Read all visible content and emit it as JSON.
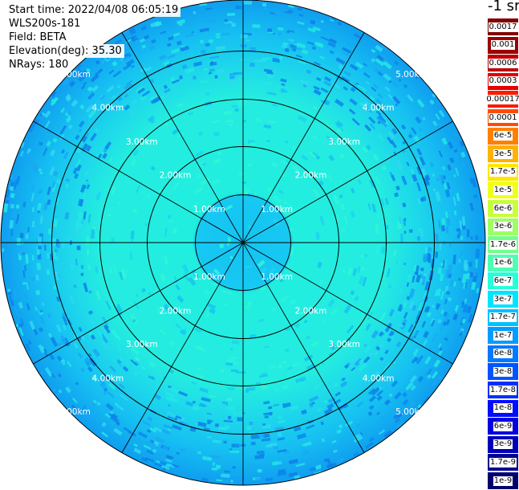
{
  "header": {
    "start_time": "Start time: 2022/04/08 06:05:19",
    "instrument": "WLS200s-181",
    "field": "Field: BETA",
    "elevation": "Elevation(deg): 35.30",
    "nrays": "NRays: 180"
  },
  "colorbar": {
    "unit": "-1 sr",
    "labels": [
      "0.0017",
      "0.001",
      "0.0006",
      "0.0003",
      "0.00017",
      "0.0001",
      "6e-5",
      "3e-5",
      "1.7e-5",
      "1e-5",
      "6e-6",
      "3e-6",
      "1.7e-6",
      "1e-6",
      "6e-7",
      "3e-7",
      "1.7e-7",
      "1e-7",
      "6e-8",
      "3e-8",
      "1.7e-8",
      "1e-8",
      "6e-9",
      "3e-9",
      "1.7e-9",
      "1e-9"
    ],
    "colors": [
      "#7f0000",
      "#9a0000",
      "#c00000",
      "#e30000",
      "#ff1a00",
      "#ff4d00",
      "#ff8000",
      "#ffb200",
      "#ffe600",
      "#f0ff1a",
      "#c8ff3c",
      "#9cff64",
      "#74ff8c",
      "#4cffb4",
      "#26ffd8",
      "#00e4ff",
      "#00c0ff",
      "#009cff",
      "#0078ff",
      "#0054ff",
      "#0030ff",
      "#000cff",
      "#0000e0",
      "#0000b8",
      "#000094",
      "#00006e"
    ]
  },
  "range_labels": [
    "1.00km",
    "2.00km",
    "3.00km",
    "4.00km",
    "5.00km"
  ]
}
